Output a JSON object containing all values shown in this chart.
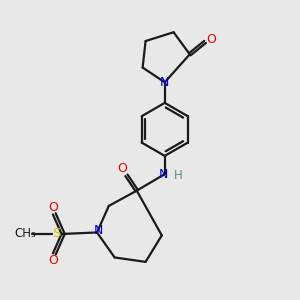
{
  "bg_color": "#e8e8e8",
  "bond_color": "#1a1a1a",
  "N_color": "#0000ee",
  "O_color": "#ee0000",
  "S_color": "#cccc00",
  "H_color": "#5a9090",
  "lw": 1.6,
  "dbo": 0.055,
  "xlim": [
    0,
    10
  ],
  "ylim": [
    0,
    10
  ]
}
